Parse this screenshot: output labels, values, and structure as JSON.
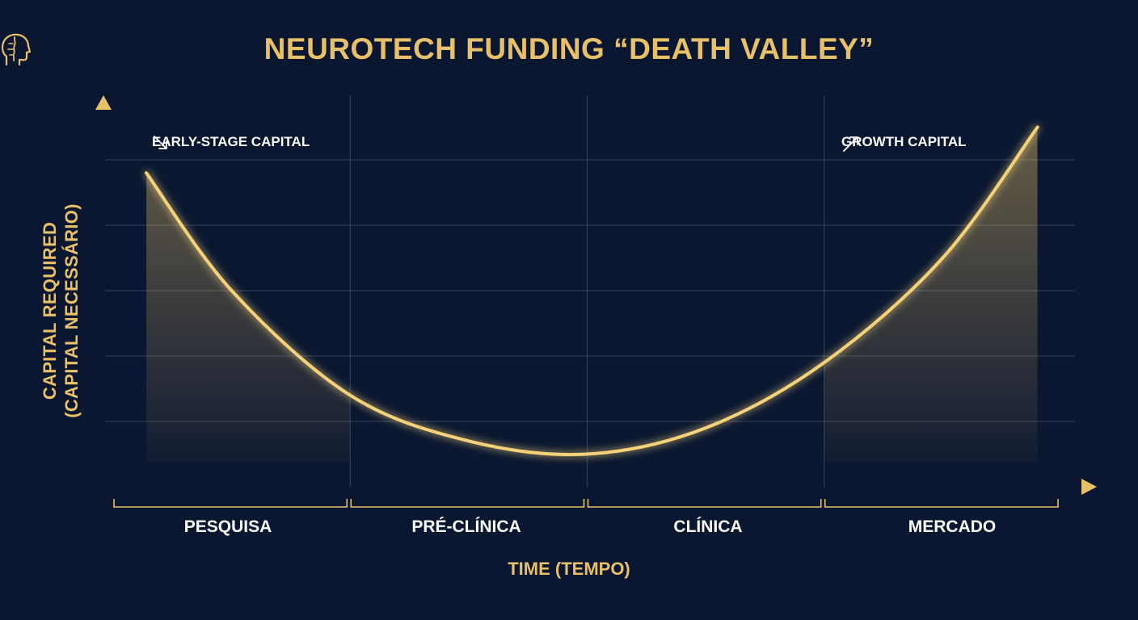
{
  "title": "NEUROTECH FUNDING “DEATH VALLEY”",
  "icons": {
    "title_icon": "head-profile-icon",
    "arrow_down": "arrow-down-right-icon",
    "arrow_up": "arrow-up-right-icon"
  },
  "colors": {
    "background": "#0b1730",
    "accent": "#e8c068",
    "curve": "#f5d27a",
    "grid": "#4a5670",
    "text": "#ffffff"
  },
  "chart_data": {
    "type": "line",
    "ylabel": [
      "CAPITAL REQUIRED",
      "(CAPITAL NECESSÁRIO)"
    ],
    "xlabel": "TIME (TEMPO)",
    "categories": [
      "PESQUISA",
      "PRÉ-CLÍNICA",
      "CLÍNICA",
      "MERCADO"
    ],
    "grid": true,
    "ylim": [
      0,
      5
    ],
    "xlim": [
      0,
      4
    ],
    "series": [
      {
        "x": [
          0.14,
          0.5,
          1.0,
          1.5,
          2.0,
          2.5,
          3.0,
          3.5,
          3.9
        ],
        "values": [
          4.8,
          3.0,
          1.4,
          0.7,
          0.5,
          0.9,
          1.9,
          3.5,
          5.5
        ]
      }
    ],
    "annotations": [
      {
        "text": "EARLY-STAGE CAPITAL",
        "position": "top-left",
        "arrow": "down-right"
      },
      {
        "text": "GROWTH CAPITAL",
        "position": "top-right",
        "arrow": "up-right"
      }
    ]
  }
}
